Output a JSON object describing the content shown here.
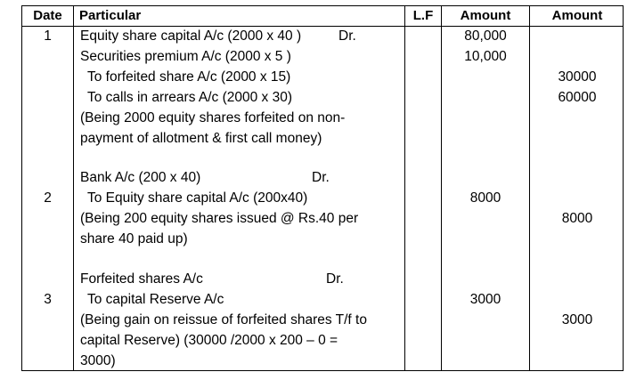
{
  "header": {
    "date": "Date",
    "particular": "Particular",
    "lf": "L.F",
    "amount_debit": "Amount",
    "amount_credit": "Amount"
  },
  "entries": [
    {
      "date": "1",
      "lines": [
        "Equity share capital A/c (2000 x 40 )",
        "Securities premium A/c (2000 x 5 )",
        " To forfeited share A/c (2000 x 15)",
        " To calls in arrears A/c (2000 x 30)",
        "(Being 2000 equity shares forfeited on non-",
        "payment of allotment & first call money)"
      ],
      "dr_label": "Dr.",
      "debit": [
        "80,000",
        "10,000"
      ],
      "credit": [
        "30000",
        "60000"
      ]
    },
    {
      "date": "2",
      "lines": [
        "Bank A/c (200 x 40)",
        " To Equity share capital A/c (200x40)",
        "(Being 200 equity shares issued @ Rs.40 per",
        "share 40 paid up)"
      ],
      "dr_label": "Dr.",
      "debit": [
        "8000"
      ],
      "credit": [
        "8000"
      ]
    },
    {
      "date": "3",
      "lines": [
        "Forfeited shares A/c",
        " To capital Reserve A/c",
        "(Being gain on reissue of forfeited shares T/f to",
        "capital Reserve) (30000 /2000 x 200 – 0 =",
        "3000)"
      ],
      "dr_label": "Dr.",
      "debit": [
        "3000"
      ],
      "credit": [
        "3000"
      ]
    }
  ]
}
